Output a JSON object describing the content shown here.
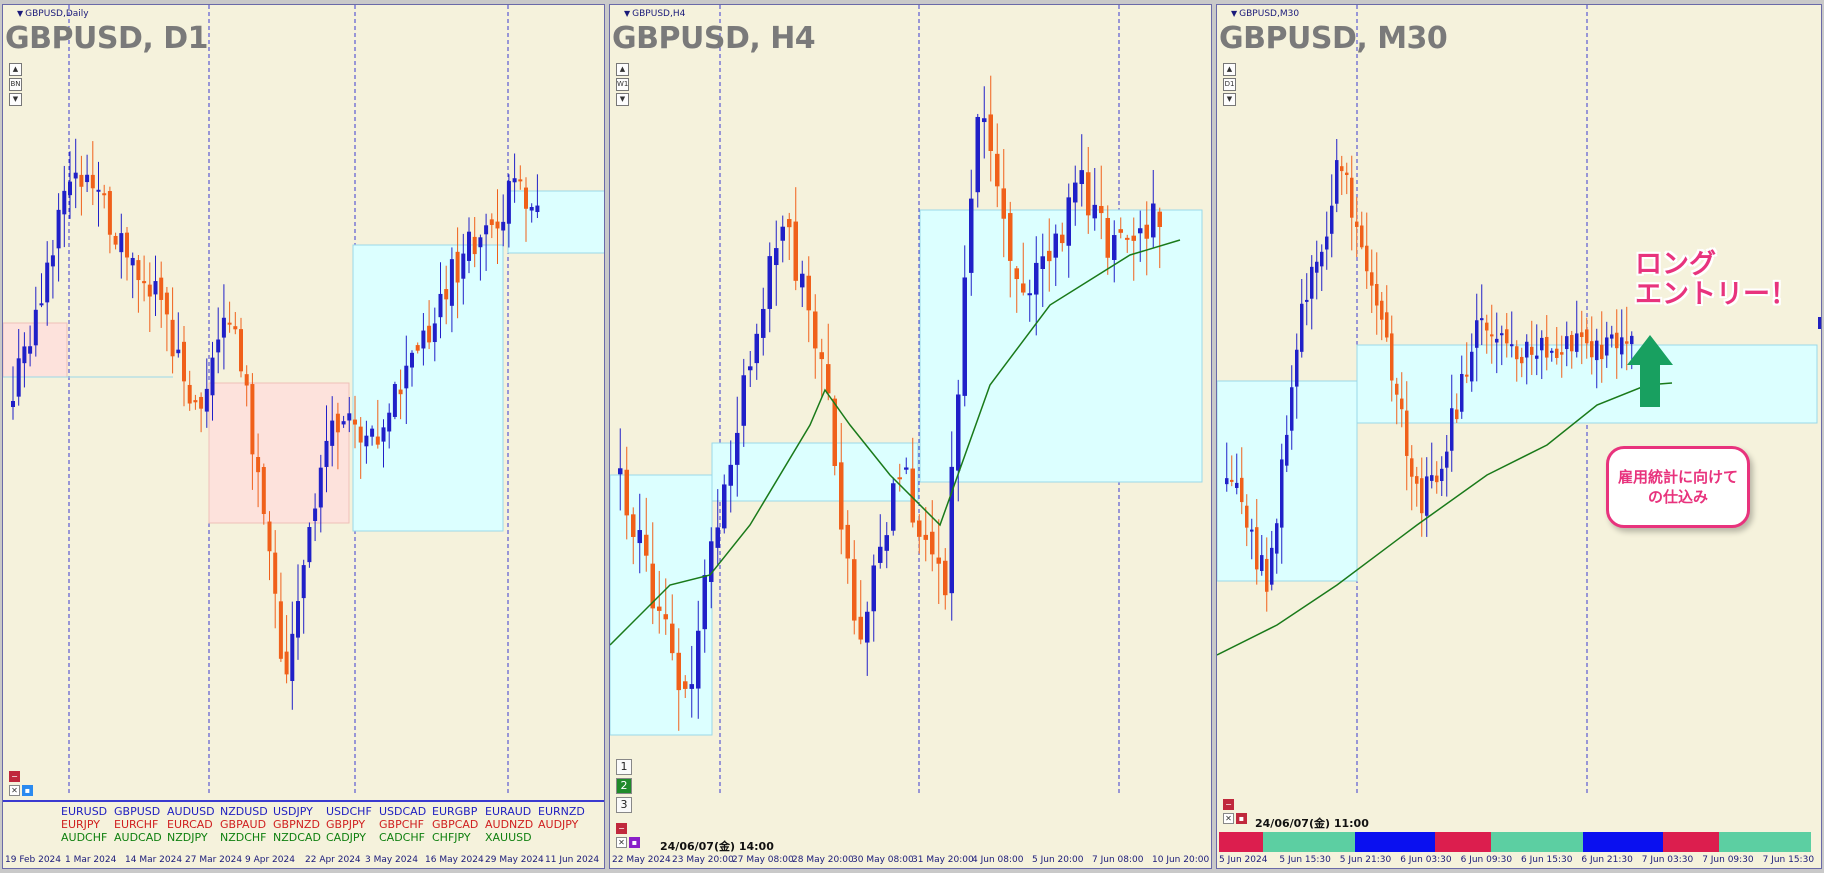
{
  "colors": {
    "bull": "#2020c8",
    "bear": "#f0601a",
    "zone_blue": "#dcffff",
    "zone_pink": "#fde2dc",
    "ma": "#1a7a1a",
    "accent_pink": "#e8337d",
    "arrow_green": "#18a060"
  },
  "panels": [
    {
      "id": "d1",
      "window_label": "GBPUSD,Daily",
      "title": "GBPUSD, D1",
      "ctrl_labels": [
        "▲",
        "BN",
        "▼"
      ],
      "xaxis": [
        "19 Feb 2024",
        "1 Mar 2024",
        "14 Mar 2024",
        "27 Mar 2024",
        "9 Apr 2024",
        "22 Apr 2024",
        "3 May 2024",
        "16 May 2024",
        "29 May 2024",
        "11 Jun 2024"
      ],
      "symbols": {
        "row1": [
          "EURUSD",
          "GBPUSD",
          "AUDUSD",
          "NZDUSD",
          "USDJPY",
          "USDCHF",
          "USDCAD",
          "EURGBP",
          "EURAUD",
          "EURNZD"
        ],
        "row2": [
          "EURJPY",
          "EURCHF",
          "EURCAD",
          "GBPAUD",
          "GBPNZD",
          "GBPJPY",
          "GBPCHF",
          "GBPCAD",
          "AUDNZD",
          "AUDJPY"
        ],
        "row3": [
          "AUDCHF",
          "AUDCAD",
          "NZDJPY",
          "NZDCHF",
          "NZDCAD",
          "CADJPY",
          "CADCHF",
          "CHFJPY",
          "XAUUSD"
        ]
      }
    },
    {
      "id": "h4",
      "window_label": "GBPUSD,H4",
      "title": "GBPUSD, H4",
      "ctrl_labels": [
        "▲",
        "W1",
        "▼"
      ],
      "tf_buttons": [
        "1",
        "2",
        "3"
      ],
      "stamp": "24/06/07(金) 14:00",
      "xaxis": [
        "22 May 2024",
        "23 May 20:00",
        "27 May 08:00",
        "28 May 20:00",
        "30 May 08:00",
        "31 May 20:00",
        "4 Jun 08:00",
        "5 Jun 20:00",
        "7 Jun 08:00",
        "10 Jun 20:00"
      ]
    },
    {
      "id": "m30",
      "window_label": "GBPUSD,M30",
      "title": "GBPUSD, M30",
      "ctrl_labels": [
        "▲",
        "D1",
        "▼"
      ],
      "stamp": "24/06/07(金) 11:00",
      "xaxis": [
        "5 Jun 2024",
        "5 Jun 15:30",
        "5 Jun 21:30",
        "6 Jun 03:30",
        "6 Jun 09:30",
        "6 Jun 15:30",
        "6 Jun 21:30",
        "7 Jun 03:30",
        "7 Jun 09:30",
        "7 Jun 15:30"
      ],
      "entry_text": "ロング\nエントリー！",
      "callout_text": "雇用統計に向けて\nの仕込み"
    }
  ]
}
